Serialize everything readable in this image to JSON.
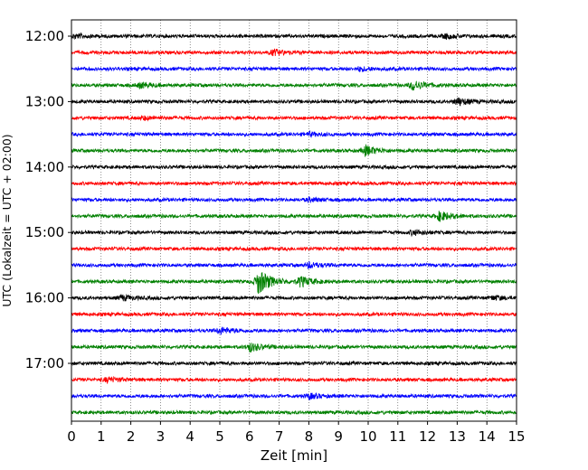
{
  "chart_data": {
    "type": "line",
    "title": "",
    "xlabel": "Zeit  [min]",
    "ylabel": "UTC (Lokalzeit = UTC + 02:00)",
    "xlim": [
      0,
      15
    ],
    "x_ticks": [
      "0",
      "1",
      "2",
      "3",
      "4",
      "5",
      "6",
      "7",
      "8",
      "9",
      "10",
      "11",
      "12",
      "13",
      "14",
      "15"
    ],
    "y_tick_labels": [
      "12:00",
      "13:00",
      "14:00",
      "15:00",
      "16:00",
      "17:00"
    ],
    "grid": "vertical dotted at each minute",
    "trace_colors": [
      "#000000",
      "#ff0000",
      "#0000ff",
      "#008000"
    ],
    "traces": [
      {
        "start": "12:00",
        "color": "#000000",
        "events": [
          {
            "t": 0.1,
            "amp": 0.35
          },
          {
            "t": 12.6,
            "amp": 0.4
          }
        ]
      },
      {
        "start": "12:15",
        "color": "#ff0000",
        "events": [
          {
            "t": 6.8,
            "amp": 0.5
          }
        ]
      },
      {
        "start": "12:30",
        "color": "#0000ff",
        "events": [
          {
            "t": 9.7,
            "amp": 0.35
          }
        ]
      },
      {
        "start": "12:45",
        "color": "#008000",
        "events": [
          {
            "t": 2.3,
            "amp": 0.45
          },
          {
            "t": 11.5,
            "amp": 0.9
          }
        ]
      },
      {
        "start": "13:00",
        "color": "#000000",
        "events": [
          {
            "t": 13.0,
            "amp": 0.7
          }
        ]
      },
      {
        "start": "13:15",
        "color": "#ff0000",
        "events": [
          {
            "t": 2.4,
            "amp": 0.3
          }
        ]
      },
      {
        "start": "13:30",
        "color": "#0000ff",
        "events": [
          {
            "t": 8.0,
            "amp": 0.3
          }
        ]
      },
      {
        "start": "13:45",
        "color": "#008000",
        "events": [
          {
            "t": 9.9,
            "amp": 0.9
          }
        ]
      },
      {
        "start": "14:00",
        "color": "#000000",
        "events": []
      },
      {
        "start": "14:15",
        "color": "#ff0000",
        "events": []
      },
      {
        "start": "14:30",
        "color": "#0000ff",
        "events": [
          {
            "t": 8.0,
            "amp": 0.3
          }
        ]
      },
      {
        "start": "14:45",
        "color": "#008000",
        "events": [
          {
            "t": 12.4,
            "amp": 0.85
          }
        ]
      },
      {
        "start": "15:00",
        "color": "#000000",
        "events": [
          {
            "t": 11.5,
            "amp": 0.45
          }
        ]
      },
      {
        "start": "15:15",
        "color": "#ff0000",
        "events": []
      },
      {
        "start": "15:30",
        "color": "#0000ff",
        "events": [
          {
            "t": 8.0,
            "amp": 0.5
          }
        ]
      },
      {
        "start": "15:45",
        "color": "#008000",
        "events": [
          {
            "t": 6.3,
            "amp": 2.4
          },
          {
            "t": 7.7,
            "amp": 0.9
          }
        ]
      },
      {
        "start": "16:00",
        "color": "#000000",
        "events": [
          {
            "t": 1.7,
            "amp": 0.45
          },
          {
            "t": 14.2,
            "amp": 0.35
          }
        ]
      },
      {
        "start": "16:15",
        "color": "#ff0000",
        "events": []
      },
      {
        "start": "16:30",
        "color": "#0000ff",
        "events": [
          {
            "t": 5.0,
            "amp": 0.6
          }
        ]
      },
      {
        "start": "16:45",
        "color": "#008000",
        "events": [
          {
            "t": 6.0,
            "amp": 0.8
          }
        ]
      },
      {
        "start": "17:00",
        "color": "#000000",
        "events": []
      },
      {
        "start": "17:15",
        "color": "#ff0000",
        "events": [
          {
            "t": 1.2,
            "amp": 0.45
          }
        ]
      },
      {
        "start": "17:30",
        "color": "#0000ff",
        "events": [
          {
            "t": 8.0,
            "amp": 0.45
          }
        ]
      },
      {
        "start": "17:45",
        "color": "#008000",
        "events": []
      }
    ]
  }
}
